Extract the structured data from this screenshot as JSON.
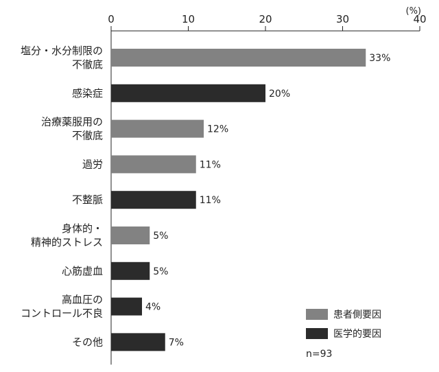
{
  "chart_data": {
    "type": "bar",
    "orientation": "horizontal",
    "unit": "(%)",
    "xlim": [
      0,
      40
    ],
    "x_ticks": [
      0,
      10,
      20,
      30,
      40
    ],
    "x_tick_labels": [
      "0",
      "10",
      "20",
      "30",
      "40"
    ],
    "grid": false,
    "axis_position": "top",
    "categories": [
      [
        "塩分・水分制限の",
        "不徹底"
      ],
      [
        "感染症"
      ],
      [
        "治療薬服用の",
        "不徹底"
      ],
      [
        "過労"
      ],
      [
        "不整脈"
      ],
      [
        "身体的・",
        "精神的ストレス"
      ],
      [
        "心筋虚血"
      ],
      [
        "高血圧の",
        "コントロール不良"
      ],
      [
        "その他"
      ]
    ],
    "values": [
      33,
      20,
      12,
      11,
      11,
      5,
      5,
      4,
      7
    ],
    "value_labels": [
      "33%",
      "20%",
      "12%",
      "11%",
      "11%",
      "5%",
      "5%",
      "4%",
      "7%"
    ],
    "groups": [
      0,
      1,
      0,
      0,
      1,
      0,
      1,
      1,
      1
    ],
    "series": [
      {
        "name": "患者側要因",
        "color": "#828282"
      },
      {
        "name": "医学的要因",
        "color": "#2b2b2b"
      }
    ],
    "legend_position": "bottom-right",
    "note": "n=93"
  }
}
